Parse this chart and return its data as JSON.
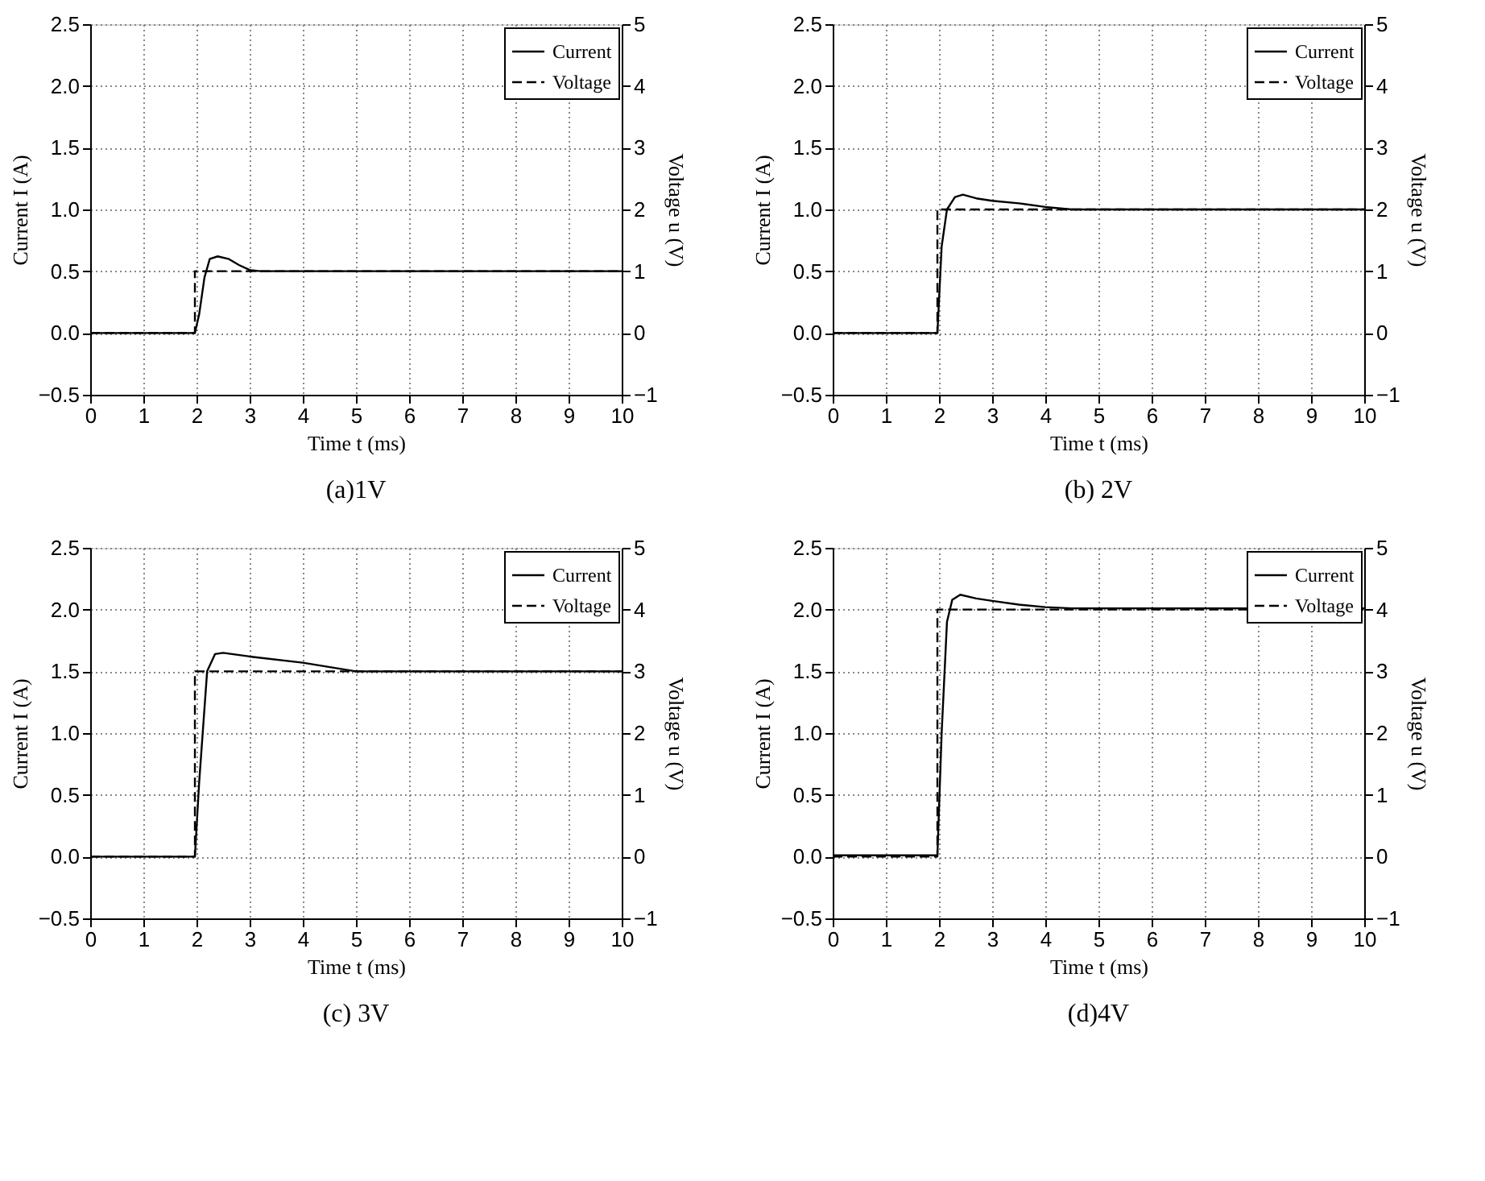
{
  "chart_data": [
    {
      "type": "line",
      "title": "(a)1V",
      "xlabel": "Time t (ms)",
      "ylabel": "Current I (A)",
      "y2label": "Voltage u (V)",
      "xlim": [
        0,
        10
      ],
      "xticks": [
        0,
        1,
        2,
        3,
        4,
        5,
        6,
        7,
        8,
        9,
        10
      ],
      "ylim": [
        -0.5,
        2.5
      ],
      "yticks": [
        -0.5,
        {
          "value": 0,
          "label": "0.0"
        },
        0.5,
        {
          "value": 1,
          "label": "1.0"
        },
        1.5,
        {
          "value": 2,
          "label": "2.0"
        },
        2.5
      ],
      "y2lim": [
        -1,
        5
      ],
      "y2ticks": [
        -1,
        0,
        1,
        2,
        3,
        4,
        5
      ],
      "grid": true,
      "legend": "top right",
      "series": [
        {
          "name": "Current",
          "color": "#000000",
          "line_style": "solid",
          "x": [
            0,
            1.97,
            2.05,
            2.15,
            2.25,
            2.4,
            2.6,
            2.8,
            3.0,
            3.2,
            10
          ],
          "values": [
            0,
            0,
            0.15,
            0.45,
            0.6,
            0.62,
            0.6,
            0.55,
            0.51,
            0.5,
            0.5
          ]
        },
        {
          "name": "Voltage",
          "color": "#000000",
          "line_style": "dashed",
          "axis": "y2",
          "x": [
            0,
            1.97,
            1.97,
            10
          ],
          "values": [
            0,
            0,
            1,
            1
          ]
        }
      ]
    },
    {
      "type": "line",
      "title": "(b)  2V",
      "xlabel": "Time t (ms)",
      "ylabel": "Current I (A)",
      "y2label": "Voltage u (V)",
      "xlim": [
        0,
        10
      ],
      "xticks": [
        0,
        1,
        2,
        3,
        4,
        5,
        6,
        7,
        8,
        9,
        10
      ],
      "ylim": [
        -0.5,
        2.5
      ],
      "yticks": [
        -0.5,
        {
          "value": 0,
          "label": "0.0"
        },
        0.5,
        {
          "value": 1,
          "label": "1.0"
        },
        1.5,
        {
          "value": 2,
          "label": "2.0"
        },
        2.5
      ],
      "y2lim": [
        -1,
        5
      ],
      "y2ticks": [
        -1,
        0,
        1,
        2,
        3,
        4,
        5
      ],
      "grid": true,
      "legend": "top right",
      "series": [
        {
          "name": "Current",
          "color": "#000000",
          "line_style": "solid",
          "x": [
            0,
            1.97,
            2.05,
            2.15,
            2.3,
            2.45,
            2.7,
            3.0,
            3.5,
            4.0,
            4.5,
            10
          ],
          "values": [
            0,
            0,
            0.7,
            1.0,
            1.1,
            1.12,
            1.09,
            1.07,
            1.05,
            1.02,
            1.0,
            1.0
          ]
        },
        {
          "name": "Voltage",
          "color": "#000000",
          "line_style": "dashed",
          "axis": "y2",
          "x": [
            0,
            1.97,
            1.97,
            10
          ],
          "values": [
            0,
            0,
            2,
            2
          ]
        }
      ]
    },
    {
      "type": "line",
      "title": "(c)  3V",
      "xlabel": "Time t (ms)",
      "ylabel": "Current I (A)",
      "y2label": "Voltage u (V)",
      "xlim": [
        0,
        10
      ],
      "xticks": [
        0,
        1,
        2,
        3,
        4,
        5,
        6,
        7,
        8,
        9,
        10
      ],
      "ylim": [
        -0.5,
        2.5
      ],
      "yticks": [
        -0.5,
        {
          "value": 0,
          "label": "0.0"
        },
        0.5,
        {
          "value": 1,
          "label": "1.0"
        },
        1.5,
        {
          "value": 2,
          "label": "2.0"
        },
        2.5
      ],
      "y2lim": [
        -1,
        5
      ],
      "y2ticks": [
        -1,
        0,
        1,
        2,
        3,
        4,
        5
      ],
      "grid": true,
      "legend": "top right",
      "series": [
        {
          "name": "Current",
          "color": "#000000",
          "line_style": "solid",
          "x": [
            0,
            1.97,
            2.05,
            2.2,
            2.35,
            2.5,
            3.0,
            4.0,
            5.0,
            10
          ],
          "values": [
            0,
            0,
            0.6,
            1.5,
            1.64,
            1.65,
            1.62,
            1.57,
            1.5,
            1.5
          ]
        },
        {
          "name": "Voltage",
          "color": "#000000",
          "line_style": "dashed",
          "axis": "y2",
          "x": [
            0,
            1.97,
            1.97,
            10
          ],
          "values": [
            0,
            0,
            3,
            3
          ]
        }
      ]
    },
    {
      "type": "line",
      "title": "(d)4V",
      "xlabel": "Time t (ms)",
      "ylabel": "Current I (A)",
      "y2label": "Voltage u (V)",
      "xlim": [
        0,
        10
      ],
      "xticks": [
        0,
        1,
        2,
        3,
        4,
        5,
        6,
        7,
        8,
        9,
        10
      ],
      "ylim": [
        -0.5,
        2.5
      ],
      "yticks": [
        -0.5,
        {
          "value": 0,
          "label": "0.0"
        },
        0.5,
        {
          "value": 1,
          "label": "1.0"
        },
        1.5,
        {
          "value": 2,
          "label": "2.0"
        },
        2.5
      ],
      "y2lim": [
        -1,
        5
      ],
      "y2ticks": [
        -1,
        0,
        1,
        2,
        3,
        4,
        5
      ],
      "grid": true,
      "legend": "top right",
      "series": [
        {
          "name": "Current",
          "color": "#000000",
          "line_style": "solid",
          "x": [
            0,
            1.97,
            2.05,
            2.15,
            2.25,
            2.4,
            2.7,
            3.0,
            3.5,
            4.0,
            4.5,
            10
          ],
          "values": [
            0.01,
            0.01,
            1.0,
            1.9,
            2.08,
            2.12,
            2.09,
            2.07,
            2.04,
            2.02,
            2.01,
            2.01
          ]
        },
        {
          "name": "Voltage",
          "color": "#000000",
          "line_style": "dashed",
          "axis": "y2",
          "x": [
            0,
            1.97,
            1.97,
            10
          ],
          "values": [
            0,
            0,
            4,
            4
          ]
        }
      ]
    }
  ]
}
